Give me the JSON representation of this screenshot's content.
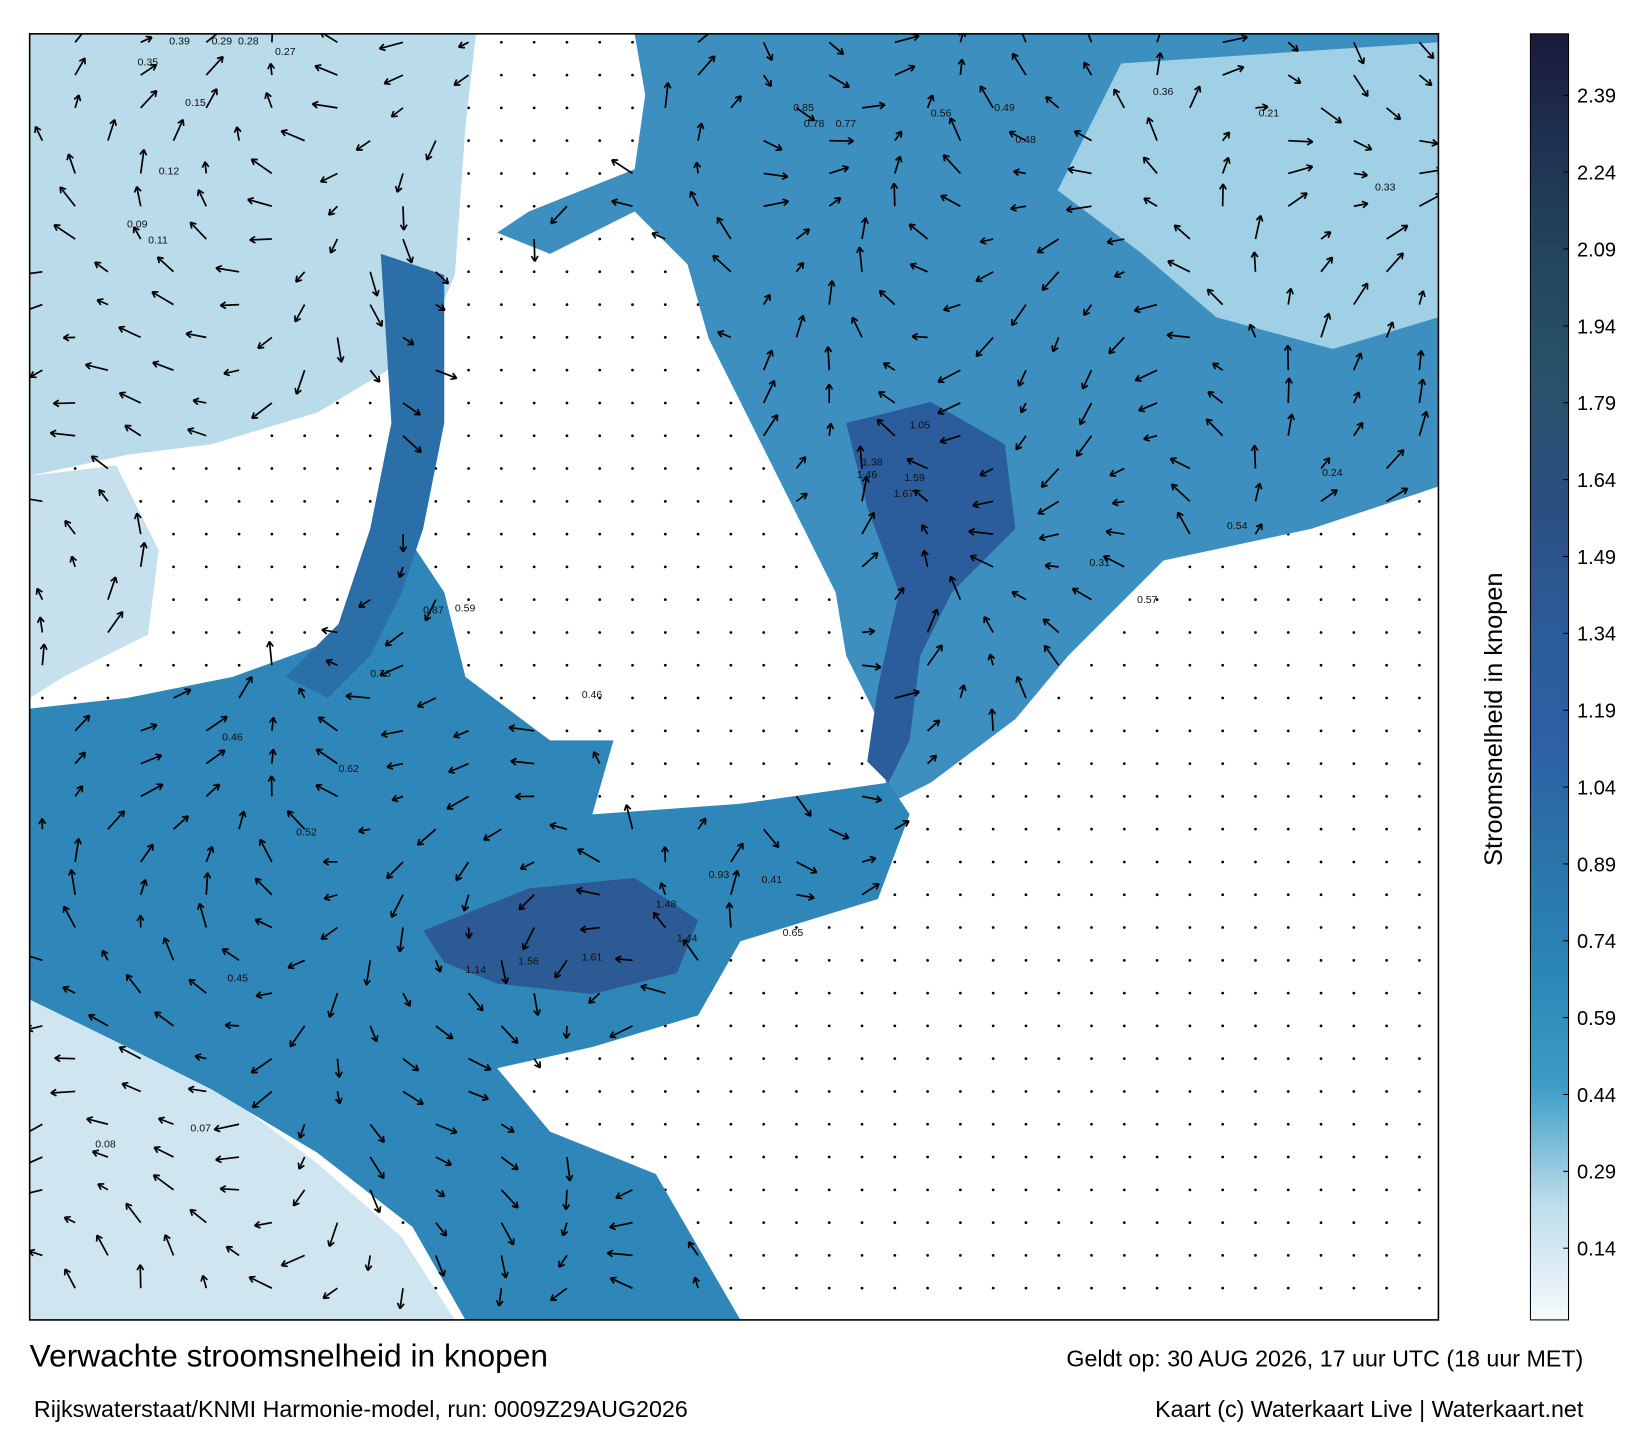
{
  "title": "Verwachte stroomsnelheid in knopen",
  "subtitle": "Rijkswaterstaat/KNMI Harmonie-model, run: 0009Z29AUG2026",
  "valid_time": "Geldt op: 30 AUG 2026, 17 uur UTC (18 uur MET)",
  "credit": "Kaart (c) Waterkaart Live | Waterkaart.net",
  "colorbar": {
    "label": "Stroomsnelheid in knopen",
    "lim": [
      0,
      2.51
    ],
    "ticks": [
      0.14,
      0.29,
      0.44,
      0.59,
      0.74,
      0.89,
      1.04,
      1.19,
      1.34,
      1.49,
      1.64,
      1.79,
      1.94,
      2.09,
      2.24,
      2.39
    ],
    "colors": [
      "#f6fafc",
      "#bddcea",
      "#3c9cc6",
      "#2a86b6",
      "#2b73a9",
      "#2d5fa4",
      "#2c5b98",
      "#2a4f80",
      "#28536a",
      "#24475d",
      "#1f3352",
      "#1a1a3a"
    ]
  },
  "map_labels": [
    "0.39",
    "0.29",
    "0.28",
    "0.27",
    "0.35",
    "0.15",
    "0.12",
    "0.11",
    "0.09",
    "0.85",
    "0.78",
    "0.77",
    "0.56",
    "0.49",
    "0.48",
    "1.05",
    "1.59",
    "1.67",
    "1.38",
    "1.46",
    "0.87",
    "0.59",
    "0.76",
    "0.62",
    "0.46",
    "0.45",
    "0.52",
    "1.14",
    "1.56",
    "1.61",
    "1.44",
    "1.48",
    "0.93",
    "0.41",
    "0.46",
    "0.65",
    "0.31",
    "0.57",
    "0.54",
    "0.36",
    "0.21",
    "0.33",
    "0.24",
    "0.08",
    "0.07"
  ]
}
